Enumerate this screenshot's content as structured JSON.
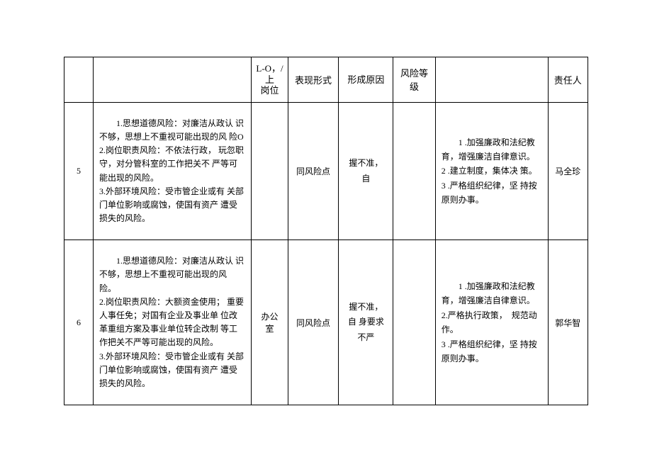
{
  "headers": {
    "col_num": "",
    "col_risk": "",
    "col_dept_upper": "L-O，/上",
    "col_dept": "岗位",
    "col_form": "表现形式",
    "col_reason": "形成原因",
    "col_level": "风险等级",
    "col_measures": "",
    "col_person": "责任人"
  },
  "rows": [
    {
      "num": "5",
      "risk": "1.思想道德风险：对廉洁从政认 识不够，思想上不重视可能出现的风 险O\n2.岗位职责风险：不依法行政， 玩忽职守，对分管科室的工作把关不 严等可能出现的风险。\n3.外部环境风险：受市管企业或有 关部门单位影响或腐蚀，使国有资产 遭受损失的风险。",
      "dept": "",
      "form": "同风险点",
      "reason": "握不准，自",
      "level": "",
      "measures": "1 .加强廉政和法纪教 育，增强廉洁自律意识。\n2 .建立制度，集体决 策。\n3 .严格组织纪律，坚 持按原则办事。",
      "person": "马全珍"
    },
    {
      "num": "6",
      "risk": "1.思想道德风险：对廉洁从政认 识不够，思想上不重视可能出现的风 险。\n2.岗位职责风险：大额资金使用； 重要人事任免；对国有企业及事业单 位改革重组方案及事业单位转企改制 等工作把关不严等可能出现的风险。\n3.外部环境风险：受市管企业或有 关部门单位影响或腐蚀，使国有资产 遭受损失的风险。",
      "dept": "办公室",
      "form": "同风险点",
      "reason": "握不准，自 身要求不严",
      "level": "",
      "measures": "1 .加强廉政和法纪教 育，增强廉洁自律意识。\n2.严格执行政策，　规范动作。\n3 .严格组织纪律，坚 持按原则办事。",
      "person": "郭华智"
    }
  ],
  "styles": {
    "border_color": "#000000",
    "background_color": "#ffffff",
    "text_color": "#000000",
    "font_size_body": 12,
    "font_size_header": 13
  }
}
